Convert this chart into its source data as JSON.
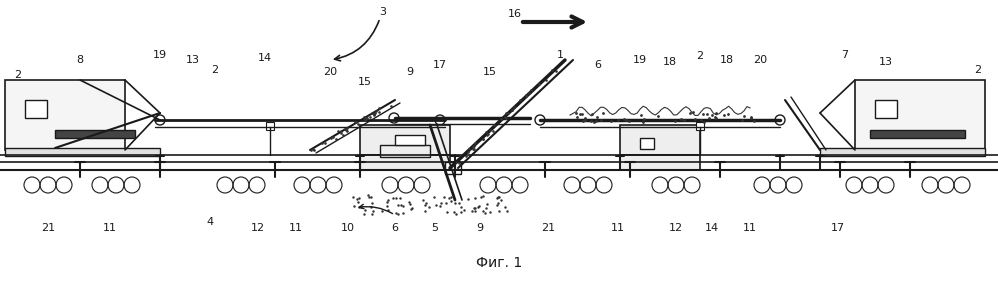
{
  "fig_width": 9.98,
  "fig_height": 2.82,
  "dpi": 100,
  "bg_color": "#ffffff",
  "caption": "Фиг. 1"
}
